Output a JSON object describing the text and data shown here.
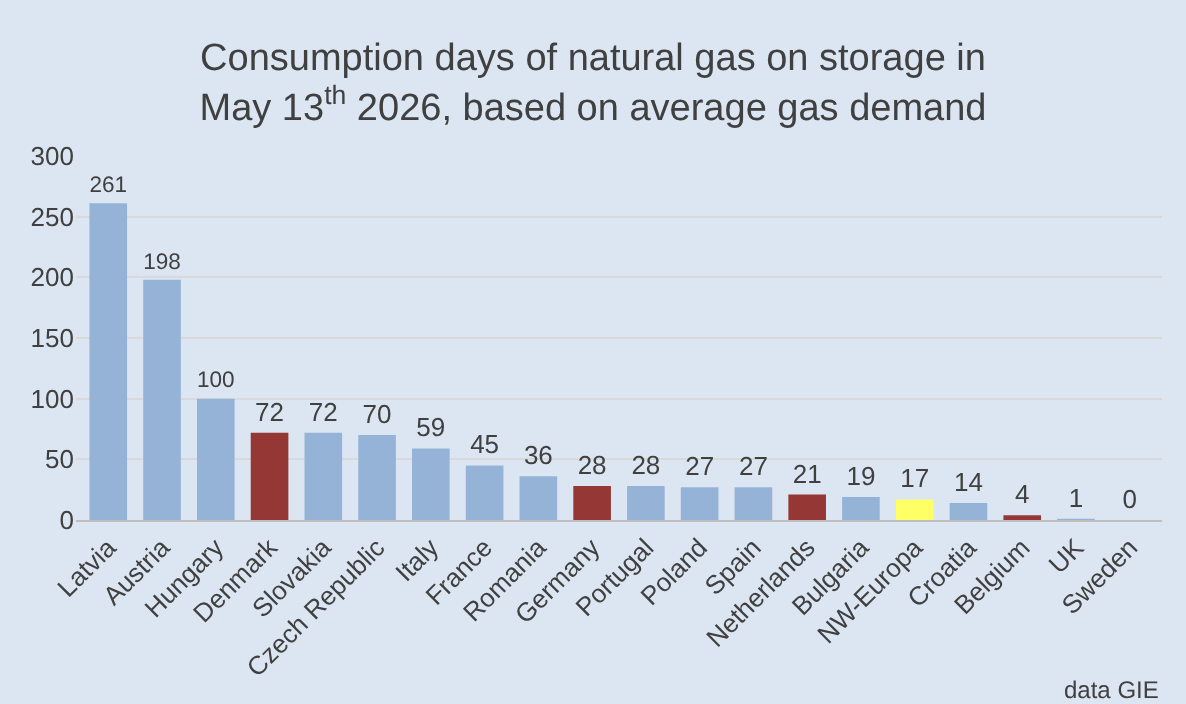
{
  "chart_data": {
    "type": "bar",
    "title": "Consumption days of natural gas on storage in\nMay 13$^{th}$ 2026, based on average gas demand",
    "categories": [
      "Latvia",
      "Austria",
      "Hungary",
      "Denmark",
      "Slovakia",
      "Czech Republic",
      "Italy",
      "France",
      "Romania",
      "Germany",
      "Portugal",
      "Poland",
      "Spain",
      "Netherlands",
      "Bulgaria",
      "NW-Europa",
      "Croatia",
      "Belgium",
      "UK",
      "Sweden"
    ],
    "values": [
      261,
      198,
      100,
      72,
      72,
      70,
      59,
      45,
      36,
      28,
      28,
      27,
      27,
      21,
      19,
      17,
      14,
      4,
      1,
      0
    ],
    "colors": [
      "#95b3d7",
      "#95b3d7",
      "#95b3d7",
      "#953735",
      "#95b3d7",
      "#95b3d7",
      "#95b3d7",
      "#95b3d7",
      "#95b3d7",
      "#953735",
      "#95b3d7",
      "#95b3d7",
      "#95b3d7",
      "#953735",
      "#95b3d7",
      "#ffff66",
      "#95b3d7",
      "#953735",
      "#95b3d7",
      "#95b3d7"
    ],
    "ylim": [
      0,
      300
    ],
    "yticks": [
      0,
      50,
      100,
      150,
      200,
      250,
      300
    ],
    "grid": "y",
    "data_labels": true,
    "annotations": [
      "data GIE"
    ]
  }
}
